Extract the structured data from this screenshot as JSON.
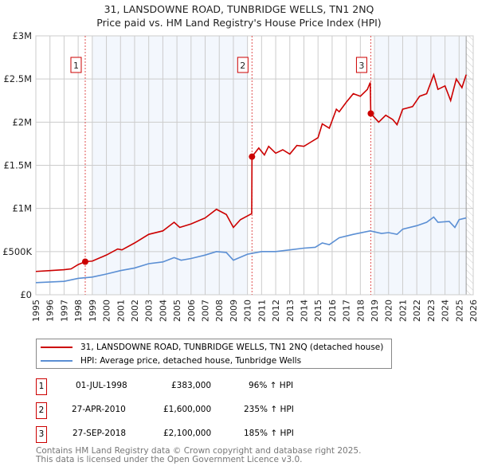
{
  "chart_data": {
    "type": "line",
    "title": "31, LANSDOWNE ROAD, TUNBRIDGE WELLS, TN1 2NQ",
    "subtitle": "Price paid vs. HM Land Registry's House Price Index (HPI)",
    "xlim": [
      1995,
      2026
    ],
    "ylim": [
      0,
      3000000
    ],
    "yticks": [
      {
        "v": 0,
        "label": "£0"
      },
      {
        "v": 500000,
        "label": "£500K"
      },
      {
        "v": 1000000,
        "label": "£1M"
      },
      {
        "v": 1500000,
        "label": "£1.5M"
      },
      {
        "v": 2000000,
        "label": "£2M"
      },
      {
        "v": 2500000,
        "label": "£2.5M"
      },
      {
        "v": 3000000,
        "label": "£3M"
      }
    ],
    "xticks": [
      1995,
      1996,
      1997,
      1998,
      1999,
      2000,
      2001,
      2002,
      2003,
      2004,
      2005,
      2006,
      2007,
      2008,
      2009,
      2010,
      2011,
      2012,
      2013,
      2014,
      2015,
      2016,
      2017,
      2018,
      2019,
      2020,
      2021,
      2022,
      2023,
      2024,
      2025,
      2026
    ],
    "grid": true,
    "shaded_ranges": [
      [
        1999,
        2010
      ],
      [
        2019,
        2025.5
      ]
    ],
    "projection_start": 2025.5,
    "series": [
      {
        "name": "31, LANSDOWNE ROAD, TUNBRIDGE WELLS, TN1 2NQ (detached house)",
        "color": "#cc0000",
        "x": [
          1995,
          1996,
          1997,
          1997.5,
          1998,
          1998.5,
          1999,
          2000,
          2000.8,
          2001.1,
          2002,
          2003,
          2004,
          2004.8,
          2005.2,
          2006,
          2007,
          2007.8,
          2008.5,
          2009,
          2009.5,
          2010.3,
          2010.32,
          2010.8,
          2011.2,
          2011.5,
          2012,
          2012.5,
          2013,
          2013.5,
          2014,
          2014.5,
          2015,
          2015.3,
          2015.8,
          2016.3,
          2016.5,
          2017,
          2017.5,
          2018,
          2018.5,
          2018.7,
          2018.74,
          2019.3,
          2019.8,
          2020.3,
          2020.6,
          2021,
          2021.7,
          2022.2,
          2022.7,
          2023.2,
          2023.5,
          2024,
          2024.4,
          2024.8,
          2025.2,
          2025.5
        ],
        "y": [
          270000,
          280000,
          290000,
          300000,
          350000,
          383000,
          390000,
          460000,
          530000,
          520000,
          600000,
          700000,
          740000,
          840000,
          780000,
          820000,
          890000,
          990000,
          930000,
          780000,
          870000,
          940000,
          1600000,
          1700000,
          1620000,
          1720000,
          1640000,
          1680000,
          1630000,
          1730000,
          1720000,
          1770000,
          1820000,
          1980000,
          1930000,
          2150000,
          2120000,
          2230000,
          2330000,
          2300000,
          2380000,
          2460000,
          2100000,
          2000000,
          2080000,
          2030000,
          1970000,
          2150000,
          2180000,
          2300000,
          2330000,
          2550000,
          2380000,
          2420000,
          2250000,
          2500000,
          2400000,
          2550000
        ]
      },
      {
        "name": "HPI: Average price, detached house, Tunbridge Wells",
        "color": "#5b8fd4",
        "x": [
          1995,
          1997,
          1998,
          1999,
          2000,
          2001,
          2002,
          2003,
          2004,
          2004.8,
          2005.3,
          2006,
          2007,
          2007.8,
          2008.5,
          2009,
          2010,
          2011,
          2012,
          2013,
          2014,
          2014.8,
          2015.3,
          2015.8,
          2016.5,
          2017.5,
          2018.7,
          2019.5,
          2020,
          2020.6,
          2021,
          2022,
          2022.7,
          2023.2,
          2023.5,
          2024.3,
          2024.7,
          2025,
          2025.5
        ],
        "y": [
          140000,
          155000,
          190000,
          205000,
          240000,
          280000,
          310000,
          360000,
          380000,
          430000,
          400000,
          420000,
          460000,
          500000,
          490000,
          400000,
          470000,
          500000,
          500000,
          520000,
          540000,
          550000,
          600000,
          580000,
          660000,
          700000,
          740000,
          710000,
          720000,
          700000,
          760000,
          800000,
          840000,
          900000,
          840000,
          850000,
          780000,
          870000,
          890000
        ]
      }
    ],
    "sales": [
      {
        "num": "1",
        "x": 1998.5,
        "value": 383000,
        "date": "01-JUL-1998",
        "price": "£383,000",
        "hpi": "96% ↑ HPI"
      },
      {
        "num": "2",
        "x": 2010.32,
        "value": 1600000,
        "date": "27-APR-2010",
        "price": "£1,600,000",
        "hpi": "235% ↑ HPI"
      },
      {
        "num": "3",
        "x": 2018.74,
        "value": 2100000,
        "date": "27-SEP-2018",
        "price": "£2,100,000",
        "hpi": "185% ↑ HPI"
      }
    ]
  },
  "footer": {
    "line1": "Contains HM Land Registry data © Crown copyright and database right 2025.",
    "line2": "This data is licensed under the Open Government Licence v3.0."
  }
}
